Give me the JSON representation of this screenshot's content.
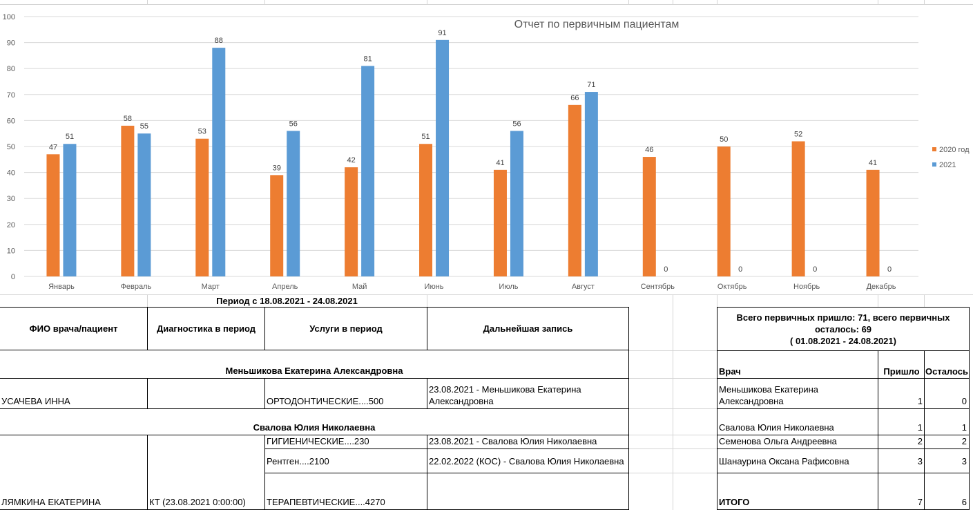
{
  "chart_data": {
    "type": "bar",
    "title": "Отчет по первичным пациентам",
    "categories": [
      "Январь",
      "Февраль",
      "Март",
      "Апрель",
      "Май",
      "Июнь",
      "Июль",
      "Август",
      "Сентябрь",
      "Октябрь",
      "Ноябрь",
      "Декабрь"
    ],
    "series": [
      {
        "name": "2020 год",
        "color": "#ED7D31",
        "values": [
          47,
          58,
          53,
          39,
          42,
          51,
          41,
          66,
          46,
          50,
          52,
          41
        ]
      },
      {
        "name": "2021",
        "color": "#5B9BD5",
        "values": [
          51,
          55,
          88,
          56,
          81,
          91,
          56,
          71,
          0,
          0,
          0,
          0
        ]
      }
    ],
    "ylim": [
      0,
      100
    ],
    "yticks": [
      0,
      10,
      20,
      30,
      40,
      50,
      60,
      70,
      80,
      90,
      100
    ],
    "grid": true,
    "legend": "right"
  },
  "report": {
    "period": "Период с 18.08.2021 - 24.08.2021",
    "headers": {
      "doctor_patient": "ФИО врача/пациент",
      "diagnostics": "Диагностика в период",
      "services": "Услуги в период",
      "next_visit": "Дальнейшая запись"
    },
    "doctor1": "Меньшикова Екатерина Александровна",
    "row1": {
      "patient": "УСАЧЕВА ИННА",
      "services": "ОРТОДОНТИЧЕСКИЕ....500",
      "next_visit": "23.08.2021 - Меньшикова Екатерина Александровна"
    },
    "doctor2": "Свалова Юлия Николаевна",
    "row2": {
      "patient": "ЛЯМКИНА ЕКАТЕРИНА",
      "diagnostics": "КТ (23.08.2021 0:00:00)",
      "service1": "ГИГИЕНИЧЕСКИЕ....230",
      "next1": "23.08.2021 - Свалова Юлия Николаевна",
      "service2": "Рентген....2100",
      "next2": "22.02.2022  (КОС) - Свалова Юлия Николаевна",
      "service3": "ТЕРАПЕВТИЧЕСКИЕ....4270"
    }
  },
  "summary": {
    "title": "Всего первичных пришло: 71, всего первичных осталось: 69",
    "period": "( 01.08.2021 - 24.08.2021)",
    "headers": {
      "doctor": "Врач",
      "came": "Пришло",
      "left": "Осталось"
    },
    "rows": [
      {
        "doctor": "Меньшикова Екатерина Александровна",
        "came": "1",
        "left": "0"
      },
      {
        "doctor": "Свалова Юлия Николаевна",
        "came": "1",
        "left": "1"
      },
      {
        "doctor": "Семенова Ольга Андреевна",
        "came": "2",
        "left": "2"
      },
      {
        "doctor": "Шанаурина Оксана Рафисовна",
        "came": "3",
        "left": "3"
      }
    ],
    "total": {
      "label": "ИТОГО",
      "came": "7",
      "left": "6"
    }
  }
}
